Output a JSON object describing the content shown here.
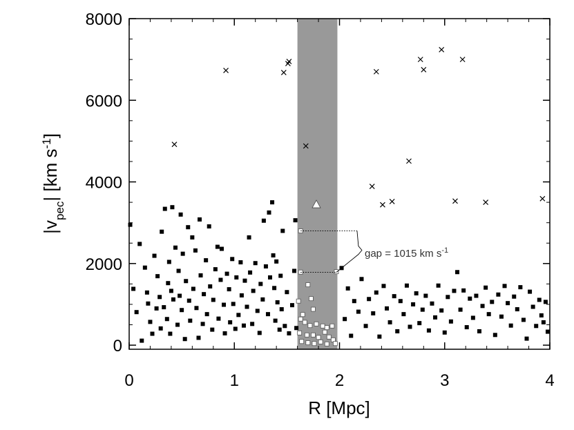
{
  "chart_data": {
    "type": "scatter",
    "title": "",
    "xlabel": "R [Mpc]",
    "ylabel_parts": {
      "pre": "|v",
      "sub": "pec",
      "mid": "|  [km s",
      "sup": "-1",
      "post": "]"
    },
    "xlim": [
      0,
      4
    ],
    "ylim": [
      -100,
      8000
    ],
    "xticks": [
      0,
      1,
      2,
      3,
      4
    ],
    "yticks": [
      0,
      2000,
      4000,
      6000,
      8000
    ],
    "grid": false,
    "shaded_band": {
      "x_from": 1.6,
      "x_to": 1.98,
      "color": "#999999"
    },
    "gap_annotation": {
      "text_pre": "gap = 1015 km s",
      "text_sup": "-1",
      "y_upper": 2800,
      "y_lower": 1785,
      "x_from": 1.63,
      "x_to": 1.97
    },
    "highlight_point": {
      "x": 1.78,
      "y": 3450
    },
    "outliers_cross": [
      [
        0.43,
        4920
      ],
      [
        0.92,
        6730
      ],
      [
        1.47,
        6680
      ],
      [
        1.51,
        6900
      ],
      [
        1.52,
        6950
      ],
      [
        1.68,
        4880
      ],
      [
        2.31,
        3890
      ],
      [
        2.35,
        6700
      ],
      [
        2.41,
        3440
      ],
      [
        2.5,
        3520
      ],
      [
        2.66,
        4510
      ],
      [
        2.77,
        7000
      ],
      [
        2.8,
        6750
      ],
      [
        2.97,
        7240
      ],
      [
        3.1,
        3530
      ],
      [
        3.17,
        7000
      ],
      [
        3.39,
        3500
      ],
      [
        3.93,
        3590
      ]
    ],
    "band_members_open": [
      [
        1.63,
        2800
      ],
      [
        1.63,
        1790
      ],
      [
        1.97,
        1800
      ],
      [
        1.61,
        1080
      ],
      [
        1.65,
        750
      ],
      [
        1.7,
        1480
      ],
      [
        1.73,
        1140
      ],
      [
        1.75,
        880
      ],
      [
        1.63,
        640
      ],
      [
        1.67,
        560
      ],
      [
        1.72,
        480
      ],
      [
        1.78,
        520
      ],
      [
        1.84,
        470
      ],
      [
        1.88,
        430
      ],
      [
        1.93,
        470
      ],
      [
        1.62,
        300
      ],
      [
        1.69,
        250
      ],
      [
        1.75,
        250
      ],
      [
        1.8,
        190
      ],
      [
        1.86,
        320
      ],
      [
        1.9,
        200
      ],
      [
        1.64,
        90
      ],
      [
        1.7,
        60
      ],
      [
        1.76,
        40
      ],
      [
        1.82,
        80
      ],
      [
        1.88,
        30
      ],
      [
        1.94,
        130
      ],
      [
        1.96,
        40
      ]
    ],
    "members_filled": [
      [
        0.01,
        2950
      ],
      [
        0.04,
        1380
      ],
      [
        0.07,
        810
      ],
      [
        0.1,
        2480
      ],
      [
        0.12,
        110
      ],
      [
        0.15,
        1900
      ],
      [
        0.17,
        1290
      ],
      [
        0.18,
        1020
      ],
      [
        0.2,
        570
      ],
      [
        0.22,
        280
      ],
      [
        0.24,
        2190
      ],
      [
        0.26,
        900
      ],
      [
        0.27,
        1690
      ],
      [
        0.29,
        1180
      ],
      [
        0.3,
        410
      ],
      [
        0.31,
        2780
      ],
      [
        0.33,
        930
      ],
      [
        0.34,
        3340
      ],
      [
        0.36,
        640
      ],
      [
        0.37,
        1520
      ],
      [
        0.38,
        2040
      ],
      [
        0.39,
        280
      ],
      [
        0.4,
        1330
      ],
      [
        0.41,
        3380
      ],
      [
        0.42,
        1120
      ],
      [
        0.44,
        2390
      ],
      [
        0.46,
        500
      ],
      [
        0.47,
        1820
      ],
      [
        0.48,
        1210
      ],
      [
        0.49,
        3200
      ],
      [
        0.5,
        860
      ],
      [
        0.51,
        2240
      ],
      [
        0.53,
        150
      ],
      [
        0.54,
        1570
      ],
      [
        0.56,
        2890
      ],
      [
        0.57,
        1090
      ],
      [
        0.58,
        600
      ],
      [
        0.6,
        2640
      ],
      [
        0.61,
        1380
      ],
      [
        0.63,
        2320
      ],
      [
        0.64,
        910
      ],
      [
        0.66,
        180
      ],
      [
        0.67,
        3080
      ],
      [
        0.68,
        1710
      ],
      [
        0.7,
        520
      ],
      [
        0.71,
        1250
      ],
      [
        0.73,
        2080
      ],
      [
        0.74,
        760
      ],
      [
        0.76,
        2910
      ],
      [
        0.77,
        1440
      ],
      [
        0.79,
        380
      ],
      [
        0.8,
        1110
      ],
      [
        0.82,
        1860
      ],
      [
        0.84,
        2410
      ],
      [
        0.85,
        650
      ],
      [
        0.87,
        1600
      ],
      [
        0.88,
        2360
      ],
      [
        0.9,
        990
      ],
      [
        0.91,
        290
      ],
      [
        0.93,
        1750
      ],
      [
        0.95,
        1370
      ],
      [
        0.96,
        560
      ],
      [
        0.98,
        2110
      ],
      [
        0.99,
        1010
      ],
      [
        1.01,
        400
      ],
      [
        1.02,
        1660
      ],
      [
        1.04,
        740
      ],
      [
        1.06,
        2030
      ],
      [
        1.07,
        1220
      ],
      [
        1.09,
        480
      ],
      [
        1.1,
        1580
      ],
      [
        1.12,
        940
      ],
      [
        1.14,
        2640
      ],
      [
        1.15,
        1780
      ],
      [
        1.17,
        520
      ],
      [
        1.18,
        1330
      ],
      [
        1.2,
        2010
      ],
      [
        1.22,
        840
      ],
      [
        1.24,
        300
      ],
      [
        1.25,
        1500
      ],
      [
        1.27,
        1120
      ],
      [
        1.28,
        3050
      ],
      [
        1.3,
        1930
      ],
      [
        1.32,
        760
      ],
      [
        1.33,
        3250
      ],
      [
        1.34,
        1660
      ],
      [
        1.36,
        3500
      ],
      [
        1.37,
        2200
      ],
      [
        1.38,
        1400
      ],
      [
        1.39,
        600
      ],
      [
        1.4,
        2050
      ],
      [
        1.41,
        1050
      ],
      [
        1.43,
        380
      ],
      [
        1.44,
        1700
      ],
      [
        1.45,
        880
      ],
      [
        1.46,
        2800
      ],
      [
        1.48,
        470
      ],
      [
        1.5,
        1300
      ],
      [
        1.52,
        290
      ],
      [
        1.55,
        980
      ],
      [
        1.57,
        1820
      ],
      [
        1.58,
        3060
      ],
      [
        1.59,
        420
      ],
      [
        2.02,
        1890
      ],
      [
        2.05,
        640
      ],
      [
        2.08,
        1390
      ],
      [
        2.11,
        230
      ],
      [
        2.14,
        1080
      ],
      [
        2.18,
        820
      ],
      [
        2.21,
        1620
      ],
      [
        2.25,
        470
      ],
      [
        2.28,
        1130
      ],
      [
        2.32,
        780
      ],
      [
        2.35,
        1290
      ],
      [
        2.38,
        210
      ],
      [
        2.42,
        1450
      ],
      [
        2.45,
        900
      ],
      [
        2.48,
        560
      ],
      [
        2.52,
        1200
      ],
      [
        2.55,
        340
      ],
      [
        2.58,
        1080
      ],
      [
        2.61,
        760
      ],
      [
        2.64,
        1460
      ],
      [
        2.67,
        450
      ],
      [
        2.7,
        1000
      ],
      [
        2.73,
        1270
      ],
      [
        2.76,
        540
      ],
      [
        2.79,
        870
      ],
      [
        2.82,
        1210
      ],
      [
        2.85,
        360
      ],
      [
        2.88,
        1020
      ],
      [
        2.91,
        680
      ],
      [
        2.94,
        1460
      ],
      [
        2.97,
        850
      ],
      [
        3.0,
        310
      ],
      [
        3.03,
        1180
      ],
      [
        3.06,
        580
      ],
      [
        3.09,
        1330
      ],
      [
        3.12,
        1790
      ],
      [
        3.15,
        870
      ],
      [
        3.18,
        1340
      ],
      [
        3.21,
        440
      ],
      [
        3.24,
        1140
      ],
      [
        3.27,
        670
      ],
      [
        3.3,
        1210
      ],
      [
        3.33,
        340
      ],
      [
        3.36,
        960
      ],
      [
        3.39,
        1410
      ],
      [
        3.42,
        760
      ],
      [
        3.45,
        1060
      ],
      [
        3.48,
        250
      ],
      [
        3.51,
        1240
      ],
      [
        3.54,
        700
      ],
      [
        3.57,
        1450
      ],
      [
        3.6,
        1030
      ],
      [
        3.63,
        480
      ],
      [
        3.66,
        1190
      ],
      [
        3.69,
        880
      ],
      [
        3.72,
        1420
      ],
      [
        3.75,
        620
      ],
      [
        3.78,
        160
      ],
      [
        3.81,
        1310
      ],
      [
        3.84,
        940
      ],
      [
        3.87,
        470
      ],
      [
        3.9,
        1110
      ],
      [
        3.92,
        730
      ],
      [
        3.94,
        560
      ],
      [
        3.96,
        1060
      ],
      [
        3.98,
        330
      ]
    ]
  }
}
